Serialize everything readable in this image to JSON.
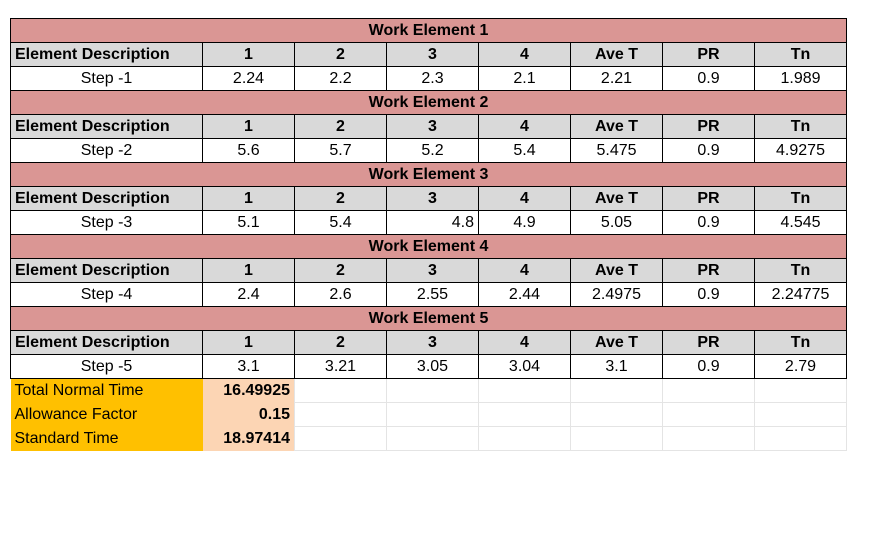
{
  "col_headers": [
    "Element Description",
    "1",
    "2",
    "3",
    "4",
    "Ave T",
    "PR",
    "Tn"
  ],
  "elements": [
    {
      "title": "Work Element 1",
      "row": [
        "Step -1",
        "2.24",
        "2.2",
        "2.3",
        "2.1",
        "2.21",
        "0.9",
        "1.989"
      ]
    },
    {
      "title": "Work Element 2",
      "row": [
        "Step -2",
        "5.6",
        "5.7",
        "5.2",
        "5.4",
        "5.475",
        "0.9",
        "4.9275"
      ]
    },
    {
      "title": "Work Element 3",
      "row": [
        "Step -3",
        "5.1",
        "5.4",
        "4.8",
        "4.9",
        "5.05",
        "0.9",
        "4.545"
      ]
    },
    {
      "title": "Work Element 4",
      "row": [
        "Step -4",
        "2.4",
        "2.6",
        "2.55",
        "2.44",
        "2.4975",
        "0.9",
        "2.24775"
      ]
    },
    {
      "title": "Work Element 5",
      "row": [
        "Step -5",
        "3.1",
        "3.21",
        "3.05",
        "3.04",
        "3.1",
        "0.9",
        "2.79"
      ]
    }
  ],
  "summary": [
    {
      "label": "Total Normal Time",
      "value": "16.49925"
    },
    {
      "label": "Allowance Factor",
      "value": "0.15"
    },
    {
      "label": "Standard Time",
      "value": "18.97414"
    }
  ],
  "colors": {
    "title_fill": "#da9694",
    "header_fill": "#d9d9d9",
    "summary_label_fill": "#ffc000",
    "summary_value_fill": "#fcd5b4"
  }
}
